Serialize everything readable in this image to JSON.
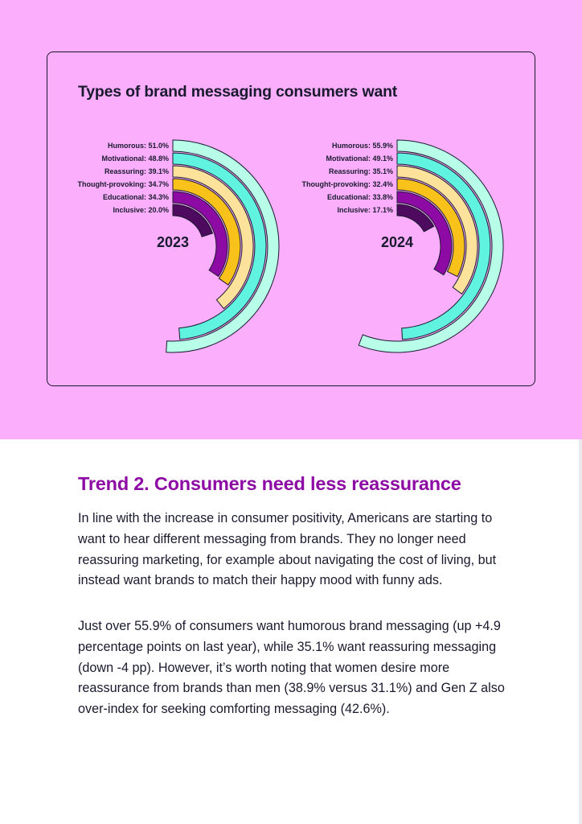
{
  "chart_title": "Types of brand messaging consumers want",
  "chart_data": [
    {
      "type": "radial-bar",
      "title": "2023",
      "max_angle_percent_scale": 100,
      "categories": [
        "Humorous",
        "Motivational",
        "Reassuring",
        "Thought-provoking",
        "Educational",
        "Inclusive"
      ],
      "values": [
        51.0,
        48.8,
        39.1,
        34.7,
        34.3,
        20.0
      ],
      "labels": [
        "Humorous: 51.0%",
        "Motivational: 48.8%",
        "Reassuring: 39.1%",
        "Thought-provoking: 34.7%",
        "Educational: 34.3%",
        "Inclusive: 20.0%"
      ],
      "colors": [
        "#b8fde8",
        "#5ff3e0",
        "#fde29c",
        "#f8c21a",
        "#8e0aa4",
        "#4d0a5e"
      ]
    },
    {
      "type": "radial-bar",
      "title": "2024",
      "max_angle_percent_scale": 100,
      "categories": [
        "Humorous",
        "Motivational",
        "Reassuring",
        "Thought-provoking",
        "Educational",
        "Inclusive"
      ],
      "values": [
        55.9,
        49.1,
        35.1,
        32.4,
        33.8,
        17.1
      ],
      "labels": [
        "Humorous: 55.9%",
        "Motivational: 49.1%",
        "Reassuring: 35.1%",
        "Thought-provoking: 32.4%",
        "Educational: 33.8%",
        "Inclusive: 17.1%"
      ],
      "colors": [
        "#b8fde8",
        "#5ff3e0",
        "#fde29c",
        "#f8c21a",
        "#8e0aa4",
        "#4d0a5e"
      ]
    }
  ],
  "article": {
    "heading": "Trend 2. Consumers need less reassurance",
    "paragraph1": "In line with the increase in consumer positivity, Americans are starting to want to hear different messaging from brands. They no longer need reassuring marketing, for example about navigating the cost of living, but instead want brands to match their happy mood with funny ads.",
    "paragraph2": "Just over 55.9% of consumers want humorous brand messaging (up +4.9 percentage points on last year), while 35.1% want reassuring messaging (down -4 pp). However, it’s worth noting that women desire more reassurance from brands than men (38.9% versus 31.1%) and Gen Z also over-index for seeking comforting messaging (42.6%)."
  }
}
